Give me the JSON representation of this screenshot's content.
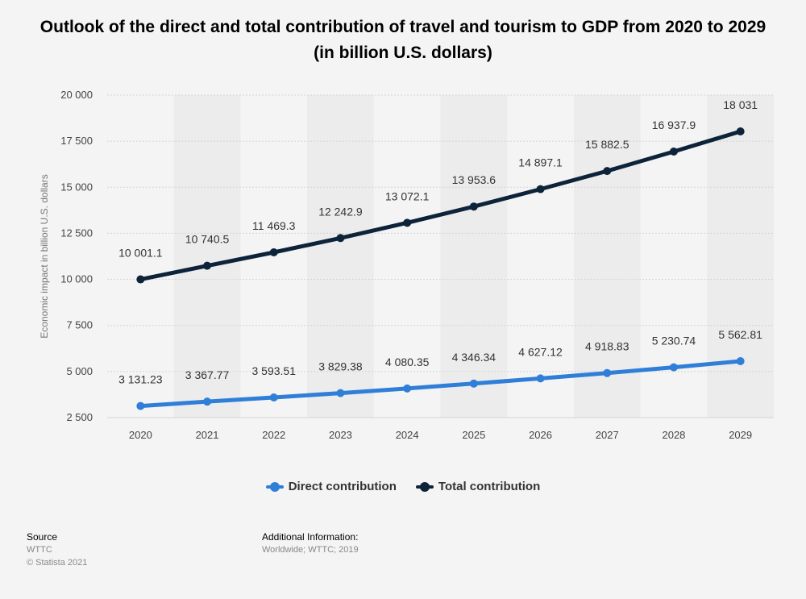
{
  "colors": {
    "direct": "#2f7ed8",
    "total": "#0d233a",
    "band": "#ececec",
    "grid": "#d4d4d4",
    "axis_text": "#444444",
    "label_text": "#333333"
  },
  "chart_data": {
    "type": "line",
    "title": "Outlook of the direct and total contribution of travel and tourism to GDP from 2020 to 2029 (in billion U.S. dollars)",
    "xlabel": "",
    "ylabel": "Economic impact in billion U.S. dollars",
    "x": [
      "2020",
      "2021",
      "2022",
      "2023",
      "2024",
      "2025",
      "2026",
      "2027",
      "2028",
      "2029"
    ],
    "ylim": [
      2500,
      20000
    ],
    "yticks": [
      2500,
      5000,
      7500,
      10000,
      12500,
      15000,
      17500,
      20000
    ],
    "ytick_labels": [
      "2 500",
      "5 000",
      "7 500",
      "10 000",
      "12 500",
      "15 000",
      "17 500",
      "20 000"
    ],
    "grid": true,
    "legend": "bottom-center",
    "series": [
      {
        "name": "Direct contribution",
        "values": [
          3131.23,
          3367.77,
          3593.51,
          3829.38,
          4080.35,
          4346.34,
          4627.12,
          4918.83,
          5230.74,
          5562.81
        ],
        "labels": [
          "3 131.23",
          "3 367.77",
          "3 593.51",
          "3 829.38",
          "4 080.35",
          "4 346.34",
          "4 627.12",
          "4 918.83",
          "5 230.74",
          "5 562.81"
        ]
      },
      {
        "name": "Total contribution",
        "values": [
          10001.1,
          10740.5,
          11469.3,
          12242.9,
          13072.1,
          13953.6,
          14897.1,
          15882.5,
          16937.9,
          18031
        ],
        "labels": [
          "10 001.1",
          "10 740.5",
          "11 469.3",
          "12 242.9",
          "13 072.1",
          "13 953.6",
          "14 897.1",
          "15 882.5",
          "16 937.9",
          "18 031"
        ]
      }
    ]
  },
  "footer": {
    "source_heading": "Source",
    "source_name": "WTTC",
    "copyright": "© Statista 2021",
    "info_heading": "Additional Information:",
    "info_text": "Worldwide; WTTC; 2019"
  }
}
